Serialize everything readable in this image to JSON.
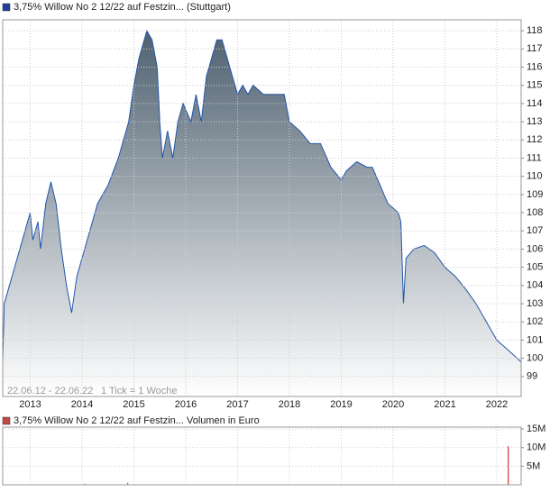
{
  "chart_data": [
    {
      "type": "area",
      "legend": "3,75% Willow No 2 12/22 auf Festzin... (Stuttgart)",
      "legend_color": "#1f3f99",
      "color": "#2255aa",
      "fill_top": "#4f6170",
      "fill_bottom": "#ffffff",
      "date_range": "22.06.12 - 22.06.22",
      "tick_note": "1 Tick = 1 Woche",
      "x": [
        2012.47,
        2012.5,
        2012.6,
        2012.7,
        2012.8,
        2012.9,
        2013.0,
        2013.05,
        2013.15,
        2013.2,
        2013.3,
        2013.4,
        2013.5,
        2013.6,
        2013.7,
        2013.8,
        2013.9,
        2014.0,
        2014.1,
        2014.2,
        2014.3,
        2014.5,
        2014.7,
        2014.9,
        2015.0,
        2015.1,
        2015.2,
        2015.25,
        2015.35,
        2015.45,
        2015.5,
        2015.55,
        2015.65,
        2015.75,
        2015.85,
        2015.95,
        2016.1,
        2016.2,
        2016.3,
        2016.4,
        2016.5,
        2016.6,
        2016.7,
        2016.8,
        2016.9,
        2017.0,
        2017.1,
        2017.2,
        2017.3,
        2017.5,
        2017.7,
        2017.9,
        2018.0,
        2018.2,
        2018.4,
        2018.6,
        2018.8,
        2019.0,
        2019.1,
        2019.3,
        2019.5,
        2019.6,
        2019.75,
        2019.9,
        2020.1,
        2020.15,
        2020.2,
        2020.25,
        2020.4,
        2020.6,
        2020.8,
        2021.0,
        2021.2,
        2021.4,
        2021.6,
        2021.8,
        2022.0,
        2022.2,
        2022.47
      ],
      "values": [
        99.8,
        103,
        104,
        105,
        106,
        107,
        108,
        106.5,
        107.5,
        106,
        108.5,
        109.7,
        108.5,
        106,
        104,
        102.5,
        104.5,
        105.5,
        106.5,
        107.5,
        108.5,
        109.5,
        111,
        113,
        115,
        116.5,
        117.5,
        118,
        117.5,
        116,
        113,
        111,
        112.5,
        111,
        113,
        114,
        113,
        114.5,
        113,
        115.5,
        116.5,
        117.5,
        117.5,
        116.5,
        115.5,
        114.5,
        115,
        114.5,
        115,
        114.5,
        114.5,
        114.5,
        113,
        112.5,
        111.8,
        111.8,
        110.5,
        109.8,
        110.3,
        110.8,
        110.5,
        110.5,
        109.5,
        108.5,
        108,
        107.5,
        103,
        105.5,
        106,
        106.2,
        105.8,
        105,
        104.5,
        103.8,
        103,
        102,
        101,
        100.5,
        99.8
      ],
      "xlim": [
        2012.47,
        2022.47
      ],
      "xticks": [
        2013,
        2014,
        2015,
        2016,
        2017,
        2018,
        2019,
        2020,
        2021,
        2022
      ],
      "ylim": [
        97.9,
        118.6
      ],
      "yticks": [
        99,
        100,
        101,
        102,
        103,
        104,
        105,
        106,
        107,
        108,
        109,
        110,
        111,
        112,
        113,
        114,
        115,
        116,
        117,
        118
      ],
      "grid": true
    },
    {
      "type": "volume",
      "legend": "3,75% Willow No 2 12/22 auf Festzin... Volumen in Euro",
      "legend_color": "#c04848",
      "x": [
        2014.05,
        2014.88,
        2015.0,
        2022.22
      ],
      "values": [
        300000,
        600000,
        200000,
        10400000
      ],
      "colors": [
        "#44aa44",
        "#44aa44",
        "#44aa44",
        "#dd3333"
      ],
      "xlim": [
        2012.47,
        2022.47
      ],
      "xticks": [
        2013,
        2014,
        2015,
        2016,
        2017,
        2018,
        2019,
        2020,
        2021,
        2022
      ],
      "ylim": [
        0,
        15500000
      ],
      "yticks": [
        {
          "value": 5000000,
          "label": "5M"
        },
        {
          "value": 10000000,
          "label": "10M"
        },
        {
          "value": 15000000,
          "label": "15M"
        }
      ],
      "grid": true
    }
  ]
}
